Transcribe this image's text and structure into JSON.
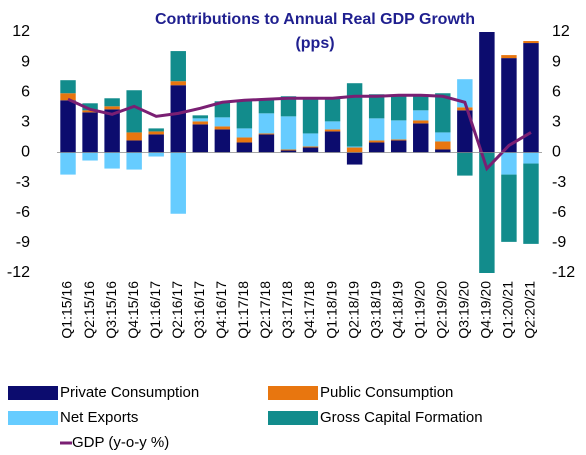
{
  "chart_data": {
    "type": "stacked_bar_line",
    "title": [
      "Contributions to Annual Real GDP Growth",
      "(pps)"
    ],
    "categories": [
      "Q1:15/16",
      "Q2:15/16",
      "Q3:15/16",
      "Q4:15/16",
      "Q1:16/17",
      "Q2:16/17",
      "Q3:16/17",
      "Q4:16/17",
      "Q1:17/18",
      "Q2:17/18",
      "Q3:17/18",
      "Q4:17/18",
      "Q1:18/19",
      "Q2:18/19",
      "Q3:18/19",
      "Q4:18/19",
      "Q1:19/20",
      "Q2:19/20",
      "Q3:19/20",
      "Q4:19/20",
      "Q1:20/21",
      "Q2:20/21"
    ],
    "series": [
      {
        "name": "Private Consumption",
        "color": "#0c0c6e",
        "values": [
          5.2,
          4.0,
          4.3,
          1.2,
          1.8,
          6.7,
          2.8,
          2.3,
          1.0,
          1.8,
          0.2,
          0.5,
          2.1,
          -1.2,
          1.0,
          1.2,
          2.9,
          0.3,
          4.2,
          12.2,
          9.4,
          10.9
        ]
      },
      {
        "name": "Public Consumption",
        "color": "#e8760f",
        "values": [
          0.7,
          0.2,
          0.3,
          0.8,
          0.3,
          0.4,
          0.3,
          0.3,
          0.5,
          0.1,
          0.1,
          0.1,
          0.2,
          0.5,
          0.2,
          0.1,
          0.3,
          0.8,
          0.3,
          0.1,
          0.3,
          0.2
        ]
      },
      {
        "name": "Net Exports",
        "color": "#66ccff",
        "values": [
          -2.2,
          -0.8,
          -1.6,
          -1.7,
          -0.4,
          -6.1,
          0.3,
          0.9,
          0.9,
          2.0,
          3.3,
          1.3,
          0.8,
          0.1,
          2.2,
          1.9,
          1.0,
          0.9,
          2.8,
          0.1,
          -2.2,
          -1.1
        ]
      },
      {
        "name": "Gross Capital Formation",
        "color": "#128c8c",
        "values": [
          1.3,
          0.7,
          0.8,
          4.2,
          0.3,
          3.0,
          0.3,
          1.6,
          2.8,
          1.4,
          2.0,
          3.6,
          2.3,
          6.3,
          2.4,
          2.5,
          1.6,
          3.9,
          -2.3,
          -12.2,
          -6.7,
          -8.0
        ]
      },
      {
        "name": "GDP (y-o-y %)",
        "color": "#7a1f73",
        "kind": "line",
        "values": [
          5.3,
          4.3,
          3.8,
          4.6,
          3.6,
          3.9,
          4.4,
          5.0,
          5.2,
          5.3,
          5.4,
          5.4,
          5.4,
          5.6,
          5.6,
          5.7,
          5.7,
          5.6,
          5.0,
          -1.6,
          0.7,
          2.0
        ]
      }
    ],
    "ylim": [
      -12,
      12
    ],
    "yticks": [
      12,
      9,
      6,
      3,
      0,
      -3,
      -6,
      -9,
      -12
    ],
    "y2lim": [
      -12,
      12
    ],
    "y2ticks": [
      12,
      9,
      6,
      3,
      0,
      -3,
      -6,
      -9,
      -12
    ]
  }
}
